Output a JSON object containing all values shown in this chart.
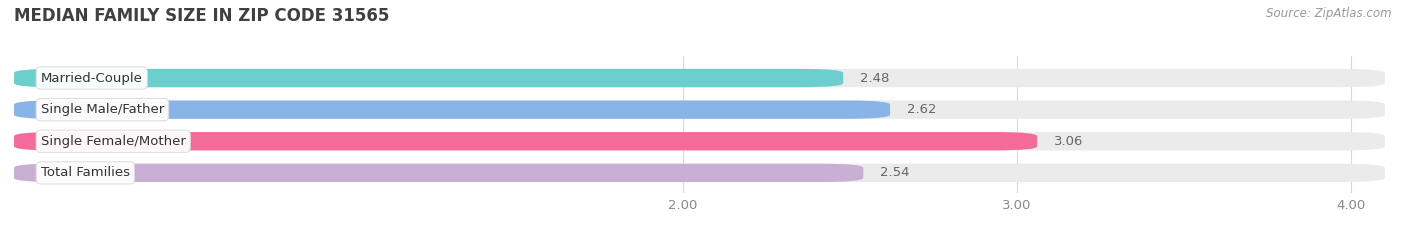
{
  "title": "MEDIAN FAMILY SIZE IN ZIP CODE 31565",
  "source": "Source: ZipAtlas.com",
  "categories": [
    "Married-Couple",
    "Single Male/Father",
    "Single Female/Mother",
    "Total Families"
  ],
  "values": [
    2.48,
    2.62,
    3.06,
    2.54
  ],
  "bar_colors": [
    "#6dcece",
    "#89b4e8",
    "#f26b9b",
    "#c9afd4"
  ],
  "xlim": [
    0,
    4.1
  ],
  "x_ticks": [
    2.0,
    3.0,
    4.0
  ],
  "x_tick_labels": [
    "2.00",
    "3.00",
    "4.00"
  ],
  "bar_height": 0.58,
  "label_fontsize": 9.5,
  "value_fontsize": 9.5,
  "title_fontsize": 12,
  "source_fontsize": 8.5,
  "bg_color": "#ffffff",
  "bar_bg_color": "#ebebeb",
  "text_color": "#555555",
  "title_color": "#404040"
}
